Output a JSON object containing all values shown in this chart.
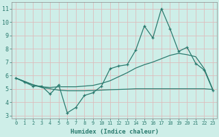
{
  "xlabel": "Humidex (Indice chaleur)",
  "x_values": [
    0,
    1,
    2,
    3,
    4,
    5,
    6,
    7,
    8,
    9,
    10,
    11,
    12,
    13,
    14,
    15,
    16,
    17,
    18,
    19,
    20,
    21,
    22,
    23
  ],
  "y_main": [
    5.8,
    5.5,
    5.2,
    5.2,
    4.6,
    5.3,
    3.2,
    3.6,
    4.5,
    4.7,
    5.2,
    6.5,
    6.7,
    6.8,
    7.9,
    9.7,
    8.8,
    11.0,
    9.5,
    7.8,
    8.1,
    6.9,
    6.4,
    4.9
  ],
  "y_line2": [
    5.8,
    5.55,
    5.3,
    5.15,
    5.1,
    5.15,
    5.15,
    5.15,
    5.2,
    5.25,
    5.4,
    5.6,
    5.9,
    6.2,
    6.55,
    6.8,
    7.0,
    7.25,
    7.5,
    7.65,
    7.55,
    7.4,
    6.5,
    4.95
  ],
  "y_line3": [
    5.8,
    5.55,
    5.3,
    5.1,
    5.0,
    4.9,
    4.85,
    4.85,
    4.85,
    4.87,
    4.9,
    4.93,
    4.95,
    4.97,
    5.0,
    5.0,
    5.0,
    5.0,
    5.0,
    5.0,
    5.0,
    5.0,
    5.0,
    4.95
  ],
  "background_color": "#ceeee8",
  "grid_color": "#ddbcbc",
  "line_color": "#2a7a6e",
  "ylim": [
    2.8,
    11.5
  ],
  "xlim": [
    -0.5,
    23.5
  ],
  "yticks": [
    3,
    4,
    5,
    6,
    7,
    8,
    9,
    10,
    11
  ],
  "xticks": [
    0,
    1,
    2,
    3,
    4,
    5,
    6,
    7,
    8,
    9,
    10,
    11,
    12,
    13,
    14,
    15,
    16,
    17,
    18,
    19,
    20,
    21,
    22,
    23
  ]
}
